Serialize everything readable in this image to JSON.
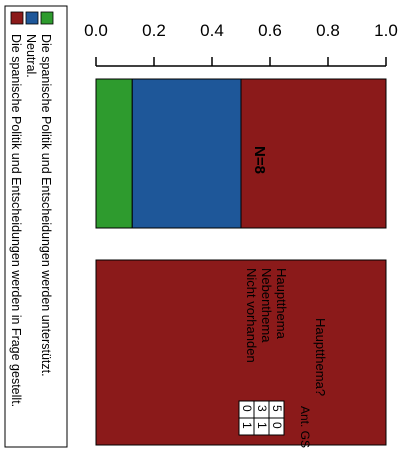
{
  "chart_data": {
    "type": "bar",
    "orientation": "horizontal",
    "stacked": true,
    "xlim": [
      0,
      1.0
    ],
    "x_ticks": [
      "0.0",
      "0.2",
      "0.4",
      "0.6",
      "0.8",
      "1.0"
    ],
    "stacked_bar": {
      "annotation": "N=8",
      "segments": [
        {
          "name": "Die spanische Politik und Entscheidungen werden unterstützt.",
          "value": 0.125,
          "color": "#2e9b2e"
        },
        {
          "name": "Neutral.",
          "value": 0.375,
          "color": "#1e5799"
        },
        {
          "name": "Die spanische Politik und Entscheidungen werden in Frage gestellt.",
          "value": 0.5,
          "color": "#8b1a1a"
        }
      ]
    },
    "theme_bar": {
      "value": 1.0,
      "color": "#8b1a1a",
      "question": "Hauptthema?",
      "column_header": "Ant. GS",
      "rows": [
        {
          "label": "Hauptthema",
          "values": [
            "5",
            "0"
          ]
        },
        {
          "label": "Nebenthema",
          "values": [
            "3",
            "1"
          ]
        },
        {
          "label": "Nicht vorhanden",
          "values": [
            "0",
            "1"
          ]
        }
      ]
    },
    "legend": {
      "position": "left",
      "items": [
        {
          "label": "Die spanische Politik und Entscheidungen werden unterstützt.",
          "color": "#2e9b2e"
        },
        {
          "label": "Neutral.",
          "color": "#1e5799"
        },
        {
          "label": "Die spanische Politik und Entscheidungen werden in Frage gestellt.",
          "color": "#8b1a1a"
        }
      ]
    }
  }
}
